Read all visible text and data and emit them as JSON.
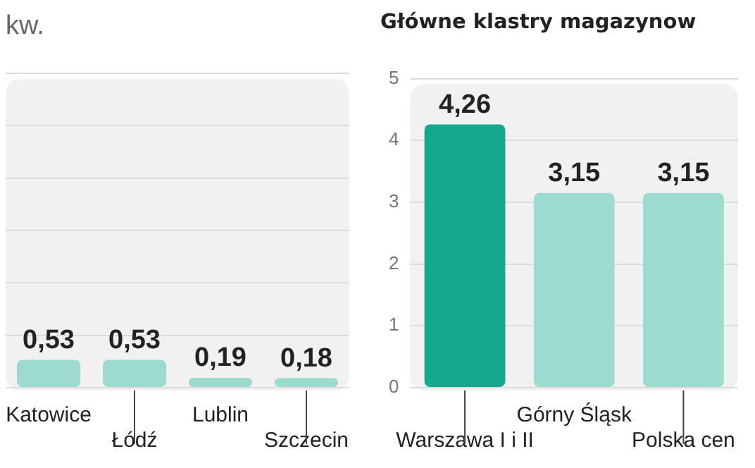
{
  "chart_data": [
    {
      "type": "bar",
      "title": "kw.",
      "categories": [
        "Katowice",
        "Łódź",
        "Lublin",
        "Szczecin"
      ],
      "values": [
        0.53,
        0.53,
        0.19,
        0.18
      ],
      "colors": [
        "#9ddbd0",
        "#9ddbd0",
        "#9ddbd0",
        "#9ddbd0"
      ],
      "value_labels": [
        "0,53",
        "0,53",
        "0,19",
        "0,18"
      ],
      "ylim": [
        0,
        6
      ],
      "tick_labels": "x",
      "grid": "y",
      "legend": false
    },
    {
      "type": "bar",
      "title": "Główne klastry magazynow",
      "categories": [
        "Warszawa I i II",
        "Górny Śląsk",
        "Polska cen"
      ],
      "values": [
        4.26,
        3.15,
        3.15
      ],
      "colors": [
        "#14a88f",
        "#9ddbd0",
        "#9ddbd0"
      ],
      "value_labels": [
        "4,26",
        "3,15",
        "3,15"
      ],
      "ylim": [
        0,
        5
      ],
      "yticks": [
        0,
        1,
        2,
        3,
        4,
        5
      ],
      "grid": "y",
      "legend": false
    }
  ]
}
